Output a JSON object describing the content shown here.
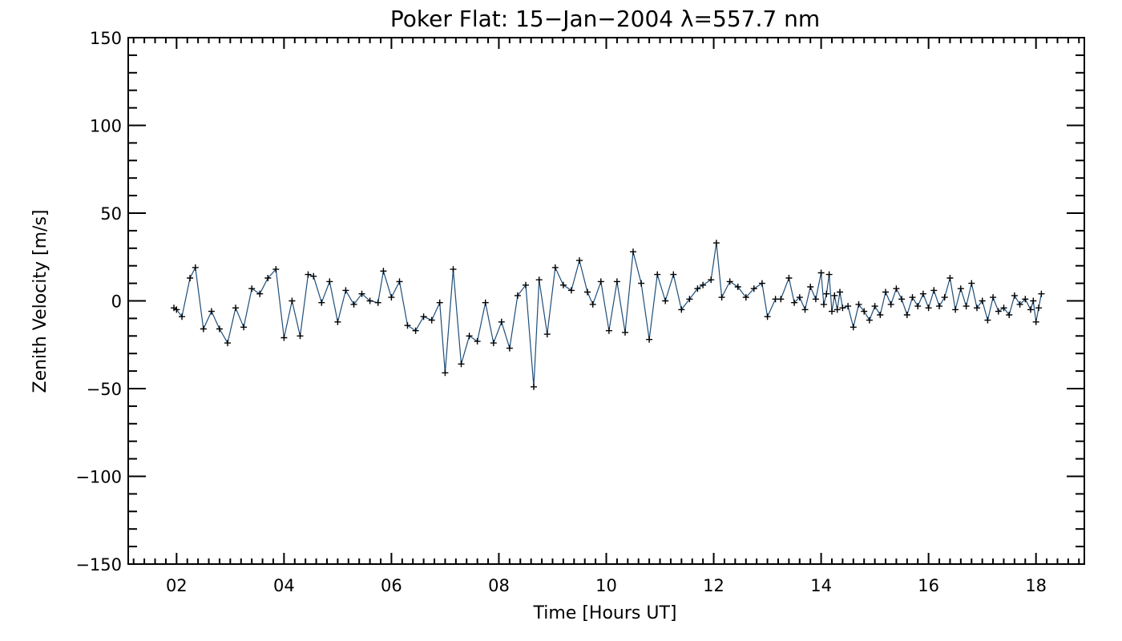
{
  "chart_data": {
    "type": "line",
    "title": "Poker Flat: 15−Jan−2004 λ=557.7 nm",
    "xlabel": "Time [Hours UT]",
    "ylabel": "Zenith Velocity [m/s]",
    "xlim": [
      1.1,
      18.9
    ],
    "ylim": [
      -150,
      150
    ],
    "x_ticks": [
      2,
      4,
      6,
      8,
      10,
      12,
      14,
      16,
      18
    ],
    "x_tick_labels": [
      "02",
      "04",
      "06",
      "08",
      "10",
      "12",
      "14",
      "16",
      "18"
    ],
    "y_ticks": [
      -150,
      -100,
      -50,
      0,
      50,
      100,
      150
    ],
    "y_tick_labels": [
      "−150",
      "−100",
      "−50",
      "0",
      "50",
      "100",
      "150"
    ],
    "grid": false,
    "marker": "plus",
    "colors": {
      "line": "#1f4e79",
      "marker": "#000000",
      "axes": "#000000"
    },
    "series": [
      {
        "x": [
          1.95,
          2.0,
          2.1,
          2.25,
          2.35,
          2.5,
          2.65,
          2.8,
          2.95,
          3.1,
          3.25,
          3.4,
          3.55,
          3.7,
          3.85,
          4.0,
          4.15,
          4.3,
          4.45,
          4.55,
          4.7,
          4.85,
          5.0,
          5.15,
          5.3,
          5.45,
          5.6,
          5.75,
          5.85,
          6.0,
          6.15,
          6.3,
          6.45,
          6.6,
          6.75,
          6.9,
          7.0,
          7.15,
          7.3,
          7.45,
          7.6,
          7.75,
          7.9,
          8.05,
          8.2,
          8.35,
          8.5,
          8.65,
          8.75,
          8.9,
          9.05,
          9.2,
          9.35,
          9.5,
          9.65,
          9.75,
          9.9,
          10.05,
          10.2,
          10.35,
          10.5,
          10.65,
          10.8,
          10.95,
          11.1,
          11.25,
          11.4,
          11.55,
          11.7,
          11.8,
          11.95,
          12.05,
          12.15,
          12.3,
          12.45,
          12.6,
          12.75,
          12.9,
          13.0,
          13.15,
          13.25,
          13.4,
          13.5,
          13.6,
          13.7,
          13.8,
          13.9,
          14.0,
          14.05,
          14.1,
          14.15,
          14.2,
          14.25,
          14.3,
          14.35,
          14.4,
          14.5,
          14.6,
          14.7,
          14.8,
          14.9,
          15.0,
          15.1,
          15.2,
          15.3,
          15.4,
          15.5,
          15.6,
          15.7,
          15.8,
          15.9,
          16.0,
          16.1,
          16.2,
          16.3,
          16.4,
          16.5,
          16.6,
          16.7,
          16.8,
          16.9,
          17.0,
          17.1,
          17.2,
          17.3,
          17.4,
          17.5,
          17.6,
          17.7,
          17.8,
          17.9,
          17.95,
          18.0,
          18.05,
          18.1
        ],
        "y": [
          -4,
          -5,
          -9,
          13,
          19,
          -16,
          -6,
          -16,
          -24,
          -4,
          -15,
          7,
          4,
          13,
          18,
          -21,
          0,
          -20,
          15,
          14,
          -1,
          11,
          -12,
          6,
          -2,
          4,
          0,
          -1,
          17,
          2,
          11,
          -14,
          -17,
          -9,
          -11,
          -1,
          -41,
          18,
          -36,
          -20,
          -23,
          -1,
          -24,
          -12,
          -27,
          3,
          9,
          -49,
          12,
          -19,
          19,
          9,
          6,
          23,
          5,
          -2,
          11,
          -17,
          11,
          -18,
          28,
          10,
          -22,
          15,
          0,
          15,
          -5,
          1,
          7,
          9,
          12,
          33,
          2,
          11,
          8,
          2,
          7,
          10,
          -9,
          1,
          1,
          13,
          -1,
          2,
          -5,
          8,
          1,
          16,
          -2,
          4,
          15,
          -6,
          3,
          -5,
          5,
          -4,
          -3,
          -15,
          -2,
          -6,
          -11,
          -3,
          -8,
          5,
          -2,
          7,
          1,
          -8,
          2,
          -3,
          4,
          -4,
          6,
          -3,
          2,
          13,
          -5,
          7,
          -3,
          10,
          -4,
          0,
          -11,
          2,
          -6,
          -4,
          -8,
          3,
          -2,
          1,
          -5,
          0,
          -12,
          -4,
          4
        ]
      }
    ]
  }
}
